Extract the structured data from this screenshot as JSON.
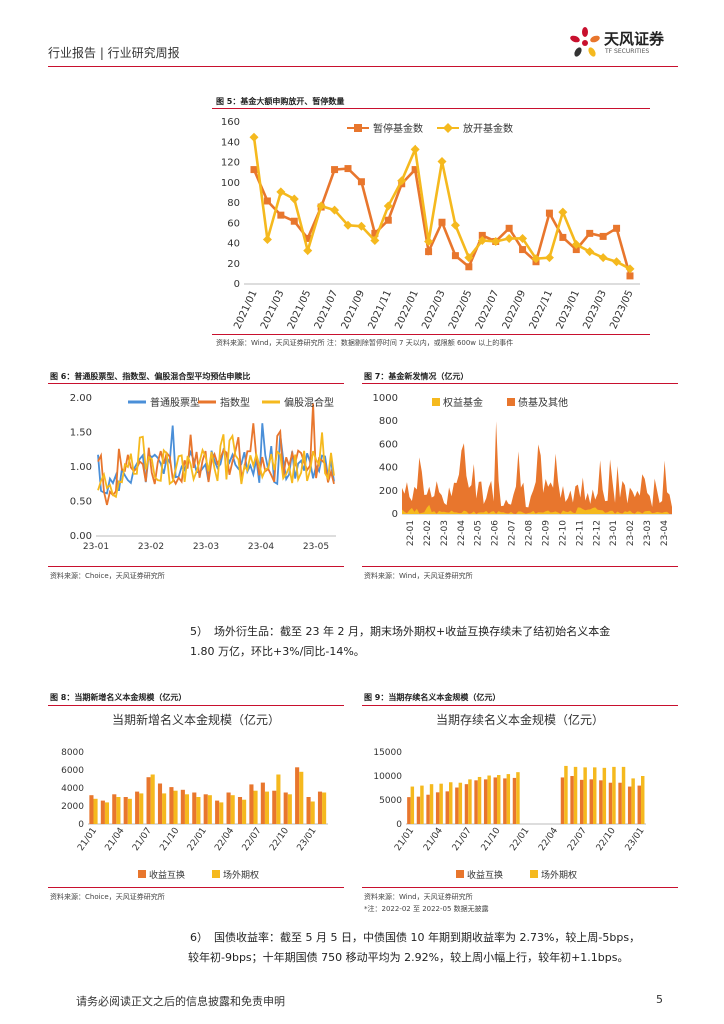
{
  "header": {
    "left_text": "行业报告 | 行业研究周报",
    "logo_cn": "天风证券",
    "logo_en": "TF SECURITIES"
  },
  "colors": {
    "orange": "#E8762D",
    "yellow": "#F5B91E",
    "blue": "#4A8FD8",
    "red_rule": "#C8102E"
  },
  "fig5": {
    "title": "图 5：基金大额申购放开、暂停数量",
    "source": "资料来源：Wind，天风证券研究所 注：数据剔除暂停时间 7 天以内，或限额 600w 以上的事件"
  },
  "fig6": {
    "title": "图 6：普通股票型、指数型、偏股混合型平均预估申赎比",
    "source": "资料来源：Choice，天风证券研究所"
  },
  "fig7": {
    "title": "图 7：基金新发情况（亿元）",
    "source": "资料来源：Wind，天风证券研究所"
  },
  "fig8": {
    "title": "图 8：当期新增名义本金规模（亿元）",
    "source": "资料来源：Choice，天风证券研究所"
  },
  "fig9": {
    "title": "图 9：当期存续名义本金规模（亿元）",
    "source": "资料来源：Wind，天风证券研究所",
    "note": "*注：2022-02 至 2022-05 数据无披露"
  },
  "para1": {
    "num": "5）",
    "line1": "场外衍生品：截至 23 年 2 月，期末场外期权+收益互换存续未了结初始名义本金",
    "line2": "1.80 万亿，环比+3%/同比-14%。"
  },
  "para2": {
    "num": "6）",
    "line1": "国债收益率：截至 5 月 5 日，中债国债 10 年期到期收益率为 2.73%，较上周-5bps，",
    "line2": "较年初-9bps；十年期国债 750 移动平均为 2.92%，较上周小幅上行，较年初+1.1bps。"
  },
  "footer": {
    "disclaimer": "请务必阅读正文之后的信息披露和免责申明",
    "page": "5"
  },
  "chart_data": [
    {
      "id": "fig5",
      "type": "line",
      "ylim": [
        0,
        160
      ],
      "yticks": [
        "0",
        "20",
        "40",
        "60",
        "80",
        "100",
        "120",
        "140",
        "160"
      ],
      "xticks": [
        "2021/01",
        "2021/03",
        "2021/05",
        "2021/07",
        "2021/09",
        "2021/11",
        "2022/01",
        "2022/03",
        "2022/05",
        "2022/07",
        "2022/09",
        "2022/11",
        "2023/01",
        "2023/03",
        "2023/05"
      ],
      "legend_position": "top",
      "series": [
        {
          "name": "暂停基金数",
          "color": "#E8762D",
          "marker": "square",
          "values": [
            113,
            82,
            68,
            62,
            45,
            76,
            113,
            114,
            101,
            50,
            63,
            99,
            113,
            32,
            61,
            28,
            17,
            48,
            42,
            55,
            34,
            22,
            70,
            46,
            34,
            50,
            47,
            55,
            8
          ]
        },
        {
          "name": "放开基金数",
          "color": "#F5B91E",
          "marker": "diamond",
          "values": [
            145,
            44,
            91,
            84,
            33,
            77,
            73,
            58,
            57,
            43,
            77,
            102,
            133,
            42,
            121,
            58,
            26,
            43,
            42,
            45,
            45,
            25,
            26,
            71,
            39,
            32,
            26,
            22,
            15
          ]
        }
      ]
    },
    {
      "id": "fig6",
      "type": "line",
      "ylim": [
        0,
        2
      ],
      "yticks": [
        "0.00",
        "0.50",
        "1.00",
        "1.50",
        "2.00"
      ],
      "xticks": [
        "23-01",
        "23-02",
        "23-03",
        "23-04",
        "23-05"
      ],
      "legend_position": "top",
      "series": [
        {
          "name": "普通股票型",
          "color": "#4A8FD8"
        },
        {
          "name": "指数型",
          "color": "#E8762D"
        },
        {
          "name": "偏股混合型",
          "color": "#F5B91E"
        }
      ]
    },
    {
      "id": "fig7",
      "type": "area",
      "ylim": [
        0,
        1000
      ],
      "yticks": [
        "0",
        "200",
        "400",
        "600",
        "800",
        "1000"
      ],
      "xticks": [
        "22-01",
        "22-02",
        "22-03",
        "22-04",
        "22-05",
        "22-06",
        "22-07",
        "22-08",
        "22-09",
        "22-10",
        "22-11",
        "22-12",
        "23-01",
        "23-02",
        "23-03",
        "23-04"
      ],
      "legend_position": "top",
      "series": [
        {
          "name": "权益基金",
          "color": "#F5B91E"
        },
        {
          "name": "债基及其他",
          "color": "#E8762D"
        }
      ]
    },
    {
      "id": "fig8",
      "type": "bar",
      "title": "当期新增名义本金规模（亿元）",
      "ylim": [
        0,
        8000
      ],
      "yticks": [
        "0",
        "2000",
        "4000",
        "6000",
        "8000"
      ],
      "xticks": [
        "21/01",
        "21/04",
        "21/07",
        "21/10",
        "22/01",
        "22/04",
        "22/07",
        "22/10",
        "23/01"
      ],
      "legend_position": "bottom",
      "series": [
        {
          "name": "收益互换",
          "color": "#E8762D",
          "values": [
            3200,
            2600,
            3300,
            3000,
            3600,
            5200,
            4500,
            4100,
            3800,
            3500,
            3300,
            2600,
            3500,
            3000,
            4400,
            4600,
            3700,
            3500,
            6300,
            3000,
            3600
          ]
        },
        {
          "name": "场外期权",
          "color": "#F5B91E",
          "values": [
            2800,
            2400,
            3000,
            2800,
            3400,
            5500,
            3400,
            3700,
            3300,
            3000,
            3200,
            2400,
            3200,
            2700,
            3700,
            3600,
            5500,
            3300,
            5800,
            2500,
            3500
          ]
        }
      ]
    },
    {
      "id": "fig9",
      "type": "bar",
      "title": "当期存续名义本金规模（亿元）",
      "ylim": [
        0,
        15000
      ],
      "yticks": [
        "0",
        "5000",
        "10000",
        "15000"
      ],
      "xticks": [
        "21/01",
        "21/04",
        "21/07",
        "21/10",
        "22/01",
        "22/04",
        "22/07",
        "22/10",
        "23/01"
      ],
      "legend_position": "bottom",
      "series": [
        {
          "name": "收益互换",
          "color": "#E8762D",
          "values": [
            5600,
            5700,
            6100,
            6600,
            6800,
            7600,
            8300,
            9100,
            9300,
            9700,
            9500,
            9600,
            null,
            null,
            null,
            null,
            9700,
            10000,
            9200,
            9300,
            9100,
            8600,
            8600,
            7800,
            8000
          ]
        },
        {
          "name": "场外期权",
          "color": "#F5B91E",
          "values": [
            7800,
            8000,
            8300,
            8400,
            8700,
            8600,
            9300,
            9800,
            10100,
            10200,
            10400,
            10800,
            null,
            null,
            null,
            null,
            12100,
            11900,
            11800,
            11800,
            11700,
            11900,
            11900,
            9500,
            10000
          ]
        }
      ]
    }
  ]
}
